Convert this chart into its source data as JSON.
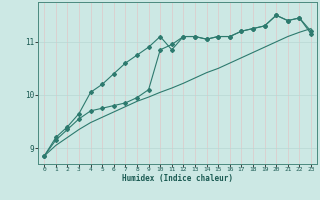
{
  "xlabel": "Humidex (Indice chaleur)",
  "ylabel": "",
  "bg_color": "#cce8e4",
  "line_color": "#2d7a6e",
  "grid_color_h": "#b8d8d4",
  "grid_color_v": "#e0c8c8",
  "xlim": [
    -0.5,
    23.5
  ],
  "ylim": [
    8.7,
    11.75
  ],
  "yticks": [
    9,
    10,
    11
  ],
  "xticks": [
    0,
    1,
    2,
    3,
    4,
    5,
    6,
    7,
    8,
    9,
    10,
    11,
    12,
    13,
    14,
    15,
    16,
    17,
    18,
    19,
    20,
    21,
    22,
    23
  ],
  "line1_x": [
    0,
    1,
    2,
    3,
    4,
    5,
    6,
    7,
    8,
    9,
    10,
    11,
    12,
    13,
    14,
    15,
    16,
    17,
    18,
    19,
    20,
    21,
    22,
    23
  ],
  "line1_y": [
    8.85,
    9.2,
    9.4,
    9.65,
    10.05,
    10.2,
    10.4,
    10.6,
    10.75,
    10.9,
    11.1,
    10.85,
    11.1,
    11.1,
    11.05,
    11.1,
    11.1,
    11.2,
    11.25,
    11.3,
    11.5,
    11.4,
    11.45,
    11.15
  ],
  "line2_x": [
    0,
    1,
    2,
    3,
    4,
    5,
    6,
    7,
    8,
    9,
    10,
    11,
    12,
    13,
    14,
    15,
    16,
    17,
    18,
    19,
    20,
    21,
    22,
    23
  ],
  "line2_y": [
    8.85,
    9.05,
    9.2,
    9.35,
    9.48,
    9.58,
    9.68,
    9.78,
    9.88,
    9.96,
    10.05,
    10.13,
    10.22,
    10.32,
    10.42,
    10.5,
    10.6,
    10.7,
    10.8,
    10.9,
    11.0,
    11.1,
    11.18,
    11.25
  ],
  "line3_x": [
    0,
    1,
    2,
    3,
    4,
    5,
    6,
    7,
    8,
    9,
    10,
    11,
    12,
    13,
    14,
    15,
    16,
    17,
    18,
    19,
    20,
    21,
    22,
    23
  ],
  "line3_y": [
    8.85,
    9.15,
    9.35,
    9.55,
    9.7,
    9.75,
    9.8,
    9.85,
    9.95,
    10.1,
    10.85,
    10.95,
    11.1,
    11.1,
    11.05,
    11.1,
    11.1,
    11.2,
    11.25,
    11.3,
    11.5,
    11.4,
    11.45,
    11.2
  ]
}
